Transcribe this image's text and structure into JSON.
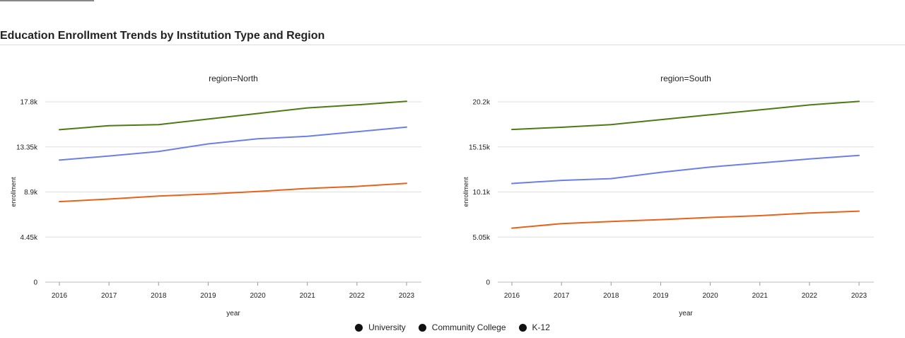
{
  "page": {
    "title": "Education Enrollment Trends by Institution Type and Region"
  },
  "legend": {
    "items": [
      {
        "label": "University",
        "marker_color": "#111111"
      },
      {
        "label": "Community College",
        "marker_color": "#111111"
      },
      {
        "label": "K-12",
        "marker_color": "#111111"
      }
    ]
  },
  "chart_data": [
    {
      "type": "line",
      "title": "region=North",
      "xlabel": "year",
      "ylabel": "enrollment",
      "x": [
        2016,
        2017,
        2018,
        2019,
        2020,
        2021,
        2022,
        2023
      ],
      "xtick_labels": [
        "2016",
        "2017",
        "2018",
        "2019",
        "2020",
        "2021",
        "2022",
        "2023"
      ],
      "yticks": [
        0,
        4450,
        8900,
        13350,
        17800
      ],
      "ytick_labels": [
        "0",
        "4.45k",
        "8.9k",
        "13.35k",
        "17.8k"
      ],
      "ylim": [
        0,
        17800
      ],
      "grid": true,
      "series": [
        {
          "color": "#4e7a14",
          "values": [
            15050,
            15450,
            15550,
            16100,
            16650,
            17200,
            17500,
            17850
          ]
        },
        {
          "color": "#6b80e6",
          "values": [
            12050,
            12450,
            12900,
            13650,
            14150,
            14400,
            14850,
            15300
          ]
        },
        {
          "color": "#e8621a",
          "values": [
            7950,
            8200,
            8500,
            8700,
            8950,
            9250,
            9450,
            9750
          ]
        }
      ]
    },
    {
      "type": "line",
      "title": "region=South",
      "xlabel": "year",
      "ylabel": "enrollment",
      "x": [
        2016,
        2017,
        2018,
        2019,
        2020,
        2021,
        2022,
        2023
      ],
      "xtick_labels": [
        "2016",
        "2017",
        "2018",
        "2019",
        "2020",
        "2021",
        "2022",
        "2023"
      ],
      "yticks": [
        0,
        5050,
        10100,
        15150,
        20200
      ],
      "ytick_labels": [
        "0",
        "5.05k",
        "10.1k",
        "15.15k",
        "20.2k"
      ],
      "ylim": [
        0,
        20200
      ],
      "grid": true,
      "series": [
        {
          "color": "#4e7a14",
          "values": [
            17100,
            17350,
            17650,
            18200,
            18750,
            19300,
            19850,
            20250
          ]
        },
        {
          "color": "#6b80e6",
          "values": [
            11050,
            11400,
            11600,
            12300,
            12900,
            13350,
            13800,
            14200
          ]
        },
        {
          "color": "#e8621a",
          "values": [
            6050,
            6550,
            6800,
            7000,
            7250,
            7450,
            7750,
            7950
          ]
        }
      ]
    }
  ]
}
